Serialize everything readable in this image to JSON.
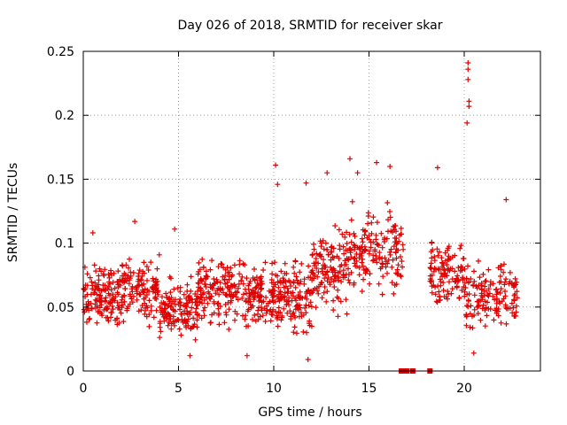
{
  "chart_data": {
    "type": "scatter",
    "title": "Day 026 of 2018, SRMTID for receiver skar",
    "xlabel": "GPS time / hours",
    "ylabel": "SRMTID / TECUs",
    "xlim": [
      0,
      24
    ],
    "ylim": [
      0,
      0.25
    ],
    "x_ticks": [
      0,
      5,
      10,
      15,
      20
    ],
    "x_tick_labels": [
      "0",
      "5",
      "10",
      "15",
      "20"
    ],
    "y_ticks": [
      0,
      0.05,
      0.1,
      0.15,
      0.2,
      0.25
    ],
    "y_tick_labels": [
      "0",
      "0.05",
      "0.1",
      "0.15",
      "0.2",
      "0.25"
    ],
    "grid": true,
    "marker": "+",
    "series_color": "#e00000",
    "noise_bands": [
      {
        "x_start": 0.0,
        "x_end": 2.0,
        "center": 0.058,
        "spread": 0.02,
        "count": 140
      },
      {
        "x_start": 2.0,
        "x_end": 4.0,
        "center": 0.065,
        "spread": 0.02,
        "count": 130
      },
      {
        "x_start": 4.0,
        "x_end": 6.0,
        "center": 0.048,
        "spread": 0.02,
        "count": 140
      },
      {
        "x_start": 6.0,
        "x_end": 8.0,
        "center": 0.062,
        "spread": 0.022,
        "count": 140
      },
      {
        "x_start": 8.0,
        "x_end": 10.0,
        "center": 0.058,
        "spread": 0.022,
        "count": 130
      },
      {
        "x_start": 10.0,
        "x_end": 12.0,
        "center": 0.058,
        "spread": 0.024,
        "count": 140
      },
      {
        "x_start": 12.0,
        "x_end": 14.0,
        "center": 0.08,
        "spread": 0.026,
        "count": 140
      },
      {
        "x_start": 14.0,
        "x_end": 16.8,
        "center": 0.095,
        "spread": 0.026,
        "count": 160
      },
      {
        "x_start": 18.2,
        "x_end": 20.0,
        "center": 0.075,
        "spread": 0.022,
        "count": 110
      },
      {
        "x_start": 20.0,
        "x_end": 22.8,
        "center": 0.06,
        "spread": 0.022,
        "count": 150
      }
    ],
    "highlight_points": [
      {
        "x": 20.2,
        "y": 0.241
      },
      {
        "x": 20.2,
        "y": 0.236
      },
      {
        "x": 20.2,
        "y": 0.228
      },
      {
        "x": 20.25,
        "y": 0.211
      },
      {
        "x": 20.25,
        "y": 0.207
      },
      {
        "x": 20.15,
        "y": 0.194
      },
      {
        "x": 14.0,
        "y": 0.166
      },
      {
        "x": 15.4,
        "y": 0.163
      },
      {
        "x": 10.1,
        "y": 0.161
      },
      {
        "x": 18.6,
        "y": 0.159
      },
      {
        "x": 14.4,
        "y": 0.155
      },
      {
        "x": 16.1,
        "y": 0.16
      },
      {
        "x": 12.8,
        "y": 0.155
      },
      {
        "x": 11.7,
        "y": 0.147
      },
      {
        "x": 10.2,
        "y": 0.146
      },
      {
        "x": 22.2,
        "y": 0.134
      },
      {
        "x": 2.7,
        "y": 0.117
      },
      {
        "x": 4.8,
        "y": 0.111
      },
      {
        "x": 0.5,
        "y": 0.108
      },
      {
        "x": 11.8,
        "y": 0.009
      },
      {
        "x": 5.6,
        "y": 0.012
      },
      {
        "x": 8.6,
        "y": 0.012
      },
      {
        "x": 20.5,
        "y": 0.014
      }
    ],
    "zero_points": [
      16.7,
      16.9,
      17.0,
      17.3,
      18.2
    ]
  }
}
